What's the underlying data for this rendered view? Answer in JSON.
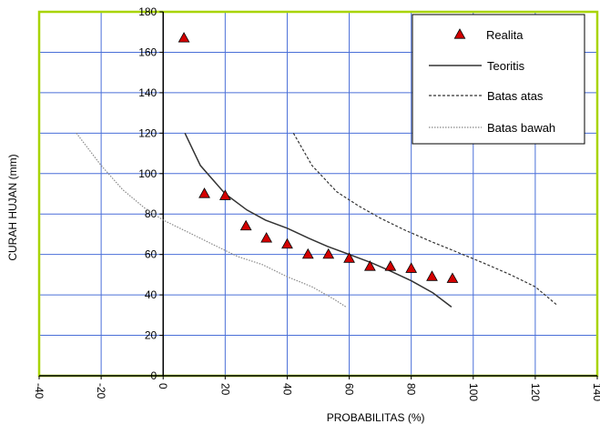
{
  "chart_data": {
    "type": "scatter",
    "title": "",
    "xlabel": "PROBABILITAS (%)",
    "ylabel": "CURAH HUJAN (mm)",
    "xlim": [
      -40,
      140
    ],
    "ylim": [
      0,
      180
    ],
    "xticks": [
      "-40",
      "-20",
      "0",
      "20",
      "40",
      "60",
      "80",
      "100",
      "120",
      "140"
    ],
    "yticks": [
      "0",
      "20",
      "40",
      "60",
      "80",
      "100",
      "120",
      "140",
      "160",
      "180"
    ],
    "grid": true,
    "legend_position": "top-right",
    "series": [
      {
        "name": "Realita",
        "kind": "markers",
        "marker": "triangle",
        "color": "#d40000",
        "x": [
          6.7,
          13.3,
          20.0,
          26.7,
          33.3,
          40.0,
          46.7,
          53.3,
          60.0,
          66.7,
          73.3,
          80.0,
          86.7,
          93.3
        ],
        "y": [
          167,
          90,
          89,
          74,
          68,
          65,
          60,
          60,
          58,
          54,
          54,
          53,
          49,
          48
        ]
      },
      {
        "name": "Teoritis",
        "kind": "line",
        "style": "solid",
        "color": "#333333",
        "x": [
          7,
          12,
          20,
          27,
          33,
          40,
          47,
          53,
          60,
          67,
          73,
          80,
          87,
          93
        ],
        "y": [
          120,
          104,
          90,
          82,
          77,
          73,
          68,
          64,
          60,
          56,
          52,
          47,
          41,
          34
        ]
      },
      {
        "name": "Batas atas",
        "kind": "line",
        "style": "dashed",
        "color": "#333333",
        "x": [
          42,
          48,
          56,
          63,
          70,
          78,
          87,
          95,
          103,
          112,
          120,
          127
        ],
        "y": [
          120,
          104,
          91,
          84,
          78,
          72,
          66,
          61,
          56,
          50,
          44,
          35
        ]
      },
      {
        "name": "Batas bawah",
        "kind": "line",
        "style": "dotted",
        "color": "#888888",
        "x": [
          -28,
          -20,
          -13,
          -6,
          0,
          8,
          16,
          24,
          32,
          40,
          48,
          55,
          59
        ],
        "y": [
          120,
          104,
          92,
          83,
          77,
          71,
          65,
          59,
          55,
          49,
          44,
          38,
          34
        ]
      }
    ]
  }
}
